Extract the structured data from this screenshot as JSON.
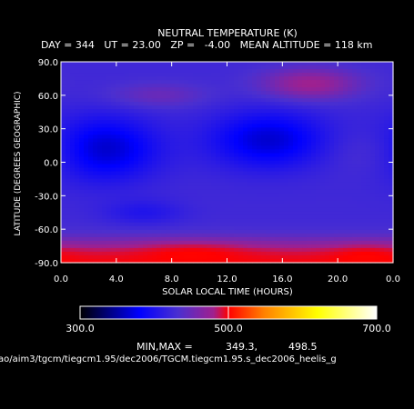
{
  "chart_data": {
    "type": "heatmap",
    "title": "NEUTRAL TEMPERATURE (K)",
    "subtitle": "DAY = 344   UT = 23.00   ZP =   -4.00   MEAN ALTITUDE = 118 km",
    "xlabel": "SOLAR LOCAL TIME (HOURS)",
    "ylabel": "LATITUDE (DEGREES GEOGRAPHIC)",
    "x_ticks": [
      "0.0",
      "4.0",
      "8.0",
      "12.0",
      "16.0",
      "20.0",
      "0.0"
    ],
    "y_ticks": [
      "90.0",
      "60.0",
      "30.0",
      "0.0",
      "-30.0",
      "-60.0",
      "-90.0"
    ],
    "xlim": [
      0,
      24
    ],
    "ylim": [
      -90,
      90
    ],
    "units": "K",
    "colorbar": {
      "min": 300.0,
      "max": 700.0,
      "ticks": [
        "300.0",
        "500.0",
        "700.0"
      ]
    },
    "min_max_label": "MIN,MAX =",
    "min_value": "349.3,",
    "max_value": "498.5",
    "file_path": "ao/aim3/tgcm/tiegcm1.95/dec2006/TGCM.tiegcm1.95.s_dec2006_heelis_g",
    "colors": {
      "background": "#000000",
      "text": "#ffffff",
      "scale": [
        "#000000",
        "#000082",
        "#0000ff",
        "#4a2fd0",
        "#8a2ba0",
        "#d22020",
        "#ff0000",
        "#ff8000",
        "#ffff00",
        "#ffffff"
      ]
    },
    "field_description": "Cool minima (~350-380 K) near lat 15 at LT 3 and LT 15; warm maxima (~495 K) near lat -75 at LT 9.5 and near lat 70 at LT 17.5; mid-values ~400-430 K."
  }
}
